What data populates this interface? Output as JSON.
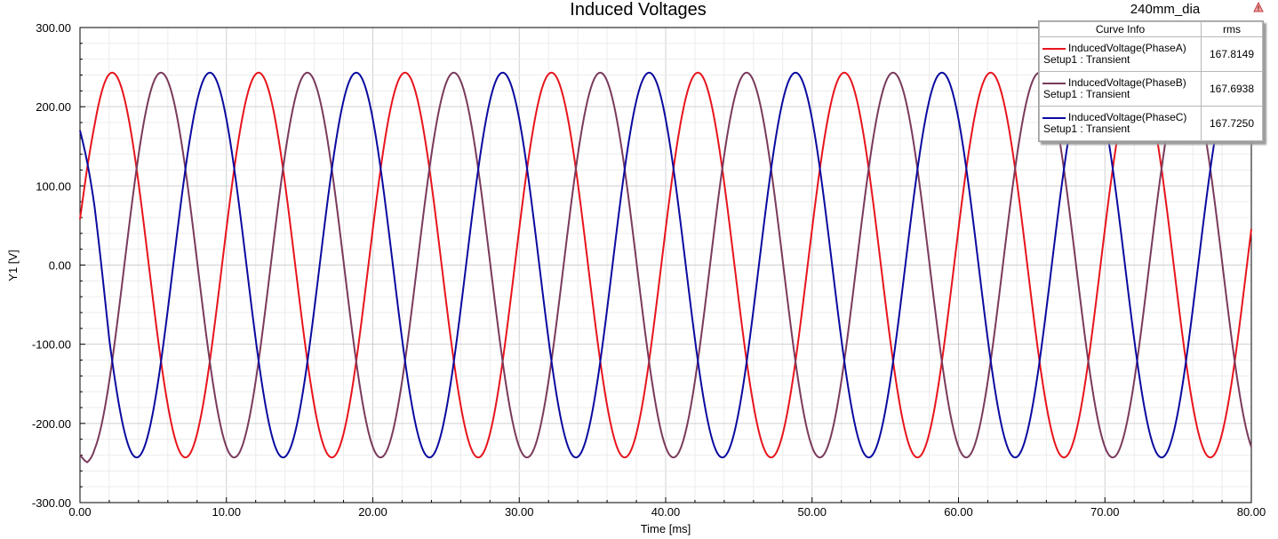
{
  "chart_data": {
    "type": "line",
    "title": "Induced Voltages",
    "project_label": "240mm_dia",
    "xlabel": "Time [ms]",
    "ylabel": "Y1 [V]",
    "xlim": [
      0,
      80
    ],
    "ylim": [
      -300,
      300
    ],
    "x_ticks": [
      "0.00",
      "10.00",
      "20.00",
      "30.00",
      "40.00",
      "50.00",
      "60.00",
      "70.00",
      "80.00"
    ],
    "y_ticks": [
      "-300.00",
      "-200.00",
      "-100.00",
      "0.00",
      "100.00",
      "200.00",
      "300.00"
    ],
    "grid": true,
    "legend_position": "top-right",
    "legend": {
      "header_curve": "Curve Info",
      "header_value": "rms",
      "entries": [
        {
          "name": "InducedVoltage(PhaseA)",
          "setup": "Setup1 : Transient",
          "rms": "167.8149",
          "color": "#e8141c"
        },
        {
          "name": "InducedVoltage(PhaseB)",
          "setup": "Setup1 : Transient",
          "rms": "167.6938",
          "color": "#7a3a5c"
        },
        {
          "name": "InducedVoltage(PhaseC)",
          "setup": "Setup1 : Transient",
          "rms": "167.7250",
          "color": "#0a0aa0"
        }
      ]
    },
    "series": [
      {
        "name": "InducedVoltage(PhaseA)",
        "color": "#e8141c",
        "amplitude": 243,
        "period_ms": 10,
        "peak_at_ms": 2.2,
        "x": [
          0,
          0.5,
          1.0,
          2.2,
          7.2,
          12.2,
          17.2,
          22.2,
          27.2,
          32.2,
          37.2,
          42.2,
          47.2,
          52.2,
          57.2,
          62.2,
          67.2,
          72.2,
          77.2,
          80.0
        ],
        "values": [
          58,
          130,
          190,
          237,
          -242,
          245,
          -242,
          243,
          -242,
          243,
          -242,
          243,
          -242,
          243,
          -242,
          243,
          -242,
          243,
          -242,
          55
        ]
      },
      {
        "name": "InducedVoltage(PhaseB)",
        "color": "#7a3a5c",
        "amplitude": 243,
        "period_ms": 10,
        "peak_at_ms": 5.53,
        "x": [
          0,
          0.5,
          1.0,
          5.5,
          10.5,
          15.5,
          20.5,
          25.5,
          30.5,
          35.5,
          40.5,
          45.5,
          50.5,
          55.5,
          60.5,
          65.5,
          70.5,
          75.5,
          80.0
        ],
        "values": [
          -240,
          -255,
          -248,
          243,
          -243,
          243,
          -243,
          243,
          -243,
          243,
          -243,
          243,
          -243,
          243,
          -243,
          243,
          -243,
          243,
          -232
        ]
      },
      {
        "name": "InducedVoltage(PhaseC)",
        "color": "#0a0aa0",
        "amplitude": 243,
        "period_ms": 10,
        "peak_at_ms": 8.87,
        "x": [
          0,
          1.0,
          2.0,
          3.9,
          8.9,
          13.9,
          18.9,
          23.9,
          28.9,
          33.9,
          38.9,
          43.9,
          48.9,
          53.9,
          58.9,
          63.9,
          68.9,
          73.9,
          80.0
        ],
        "values": [
          170,
          90,
          -30,
          -222,
          243,
          -243,
          243,
          -243,
          243,
          -243,
          243,
          -243,
          243,
          -243,
          243,
          -243,
          243,
          -243,
          175
        ]
      }
    ]
  }
}
